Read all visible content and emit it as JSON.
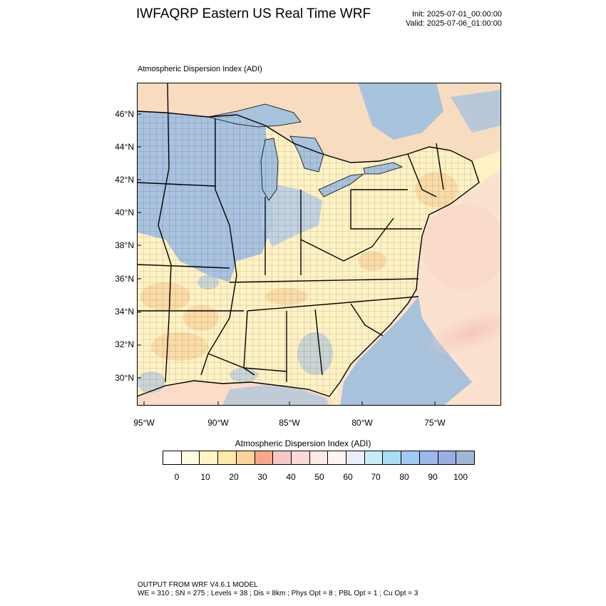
{
  "header": {
    "title": "IWFAQRP Eastern US Real Time WRF",
    "init": "Init: 2025-07-01_00:00:00",
    "valid": "Valid: 2025-07-06_01:00:00"
  },
  "map": {
    "subtitle": "Atmospheric Dispersion Index   (ADI)",
    "lat_labels": [
      "46°N",
      "44°N",
      "42°N",
      "40°N",
      "38°N",
      "36°N",
      "34°N",
      "32°N",
      "30°N"
    ],
    "lon_labels": [
      "95°W",
      "90°W",
      "85°W",
      "80°W",
      "75°W"
    ],
    "colors": {
      "land_low": "#fff2c4",
      "land_warm": "#f8c98f",
      "lake_high": "#a7c3de",
      "ocean_high": "#9fbfdc",
      "ocean_pink": "#f6d7c8",
      "border": "#000000"
    }
  },
  "colorbar": {
    "title": "Atmospheric Dispersion Index  (ADI)",
    "labels": [
      "0",
      "10",
      "20",
      "30",
      "40",
      "50",
      "60",
      "70",
      "80",
      "90",
      "100"
    ],
    "colors": [
      "#ffffff",
      "#fffde0",
      "#fff5c4",
      "#ffe9a8",
      "#ffd49a",
      "#f5a98a",
      "#f8c7c4",
      "#fad9d6",
      "#fde9e6",
      "#fff4f4",
      "#e9eefb",
      "#c9ecf9",
      "#a8ddf5",
      "#a0cbf3",
      "#9cb8ee",
      "#9aaee4",
      "#a2b7d6"
    ]
  },
  "footer": {
    "line1": "OUTPUT FROM WRF V4.6.1 MODEL",
    "line2": "WE = 310 ; SN = 275 ; Levels = 38 ; Dis = 8km ; Phys Opt = 8 ; PBL Opt = 1 ; Cu Opt = 3"
  }
}
